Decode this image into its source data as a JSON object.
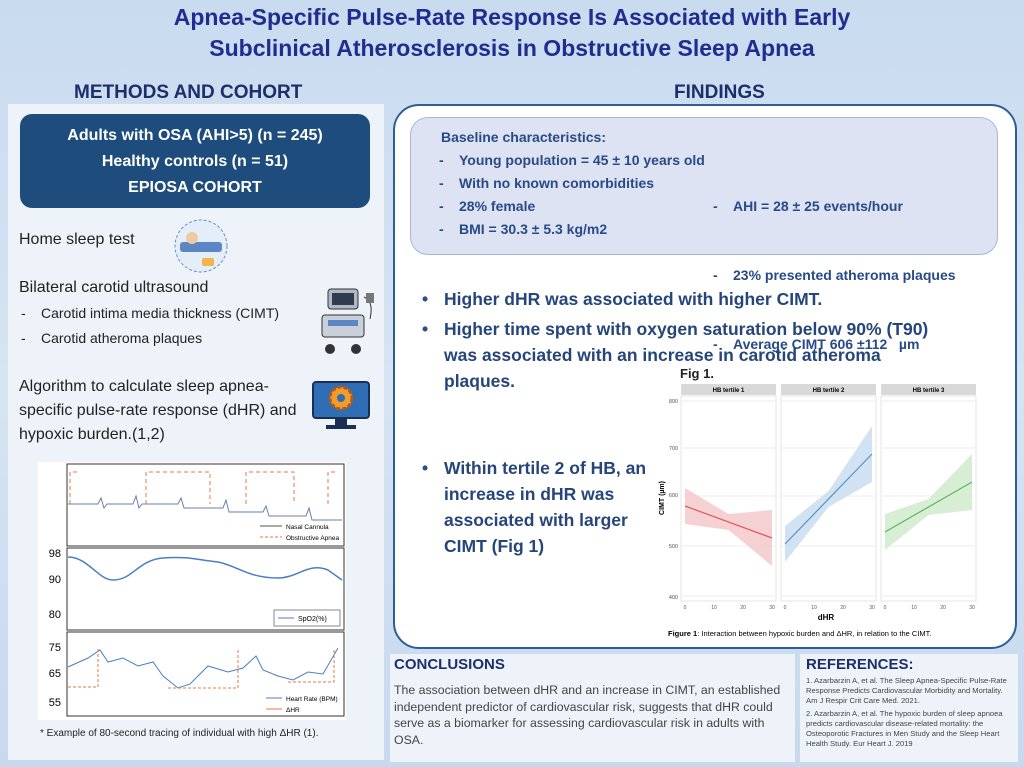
{
  "title": "Apnea-Specific Pulse-Rate Response Is Associated with Early Subclinical Atherosclerosis in Obstructive Sleep Apnea",
  "methods": {
    "heading": "METHODS AND COHORT",
    "cohort": [
      "Adults with OSA (AHI>5) (n = 245)",
      "Healthy controls (n = 51)",
      "EPIOSA COHORT"
    ],
    "home_test": "Home sleep test",
    "ultrasound": {
      "title": "Bilateral carotid ultrasound",
      "bullets": [
        "Carotid intima media thickness (CIMT)",
        "Carotid atheroma plaques"
      ]
    },
    "algorithm": "Algorithm to calculate sleep apnea-specific pulse-rate response (dHR) and hypoxic burden.(1,2)",
    "tracing": {
      "airflow_legend": [
        "Nasal Cannula",
        "Obstructive Apnea"
      ],
      "spo2_ticks": [
        "98",
        "90",
        "80"
      ],
      "spo2_legend": "SpO2(%)",
      "hr_ticks": [
        "75",
        "65",
        "55"
      ],
      "hr_legend": [
        "Heart Rate (BPM)",
        "ΔHR"
      ],
      "caption": "* Example of 80-second tracing of individual with high ΔHR (1)."
    }
  },
  "findings": {
    "heading": "FINDINGS",
    "baseline": {
      "title": "Baseline characteristics:",
      "left": [
        "Young population = 45 ± 10 years old",
        "With no known comorbidities",
        "28% female",
        "BMI = 30.3 ± 5.3 kg/m2"
      ],
      "right": [
        "AHI = 28 ± 25 events/hour",
        "23% presented atheroma plaques",
        "Average CIMT 606 ±112   µm"
      ]
    },
    "bullets": [
      "Higher dHR was associated with higher CIMT.",
      "Higher time spent with oxygen saturation below 90% (T90) was associated with an increase in carotid atheroma plaques.",
      "Within tertile 2 of HB, an increase in dHR was associated with larger CIMT (Fig 1)"
    ],
    "figure": {
      "title": "Fig 1.",
      "panels": [
        "HB tertile 1",
        "HB tertile 2",
        "HB tertile 3"
      ],
      "y_label": "CIMT (µm)",
      "x_label": "dHR",
      "y_ticks": [
        "800",
        "700",
        "600",
        "500",
        "400"
      ],
      "x_ticks": [
        "0",
        "10",
        "20",
        "30"
      ],
      "caption_label": "Figure 1",
      "caption": ": Interaction between hypoxic burden and ΔHR, in relation to the CIMT."
    }
  },
  "conclusions": {
    "heading": "CONCLUSIONS",
    "text": "The association between dHR and an increase in CIMT, an established independent predictor of cardiovascular risk, suggests that dHR could serve as a biomarker for assessing cardiovascular risk in adults with OSA."
  },
  "references": {
    "heading": "REFERENCES:",
    "items": [
      "1.  Azarbarzin A, et al. The Sleep Apnea-Specific Pulse-Rate Response Predicts Cardiovascular Morbidity and Mortality. Am J Respir Crit Care Med. 2021.",
      "2.  Azarbarzin A, et al. The hypoxic burden of sleep apnoea predicts cardiovascular disease-related mortality: the Osteoporotic Fractures in Men Study and the Sleep Heart Health Study. Eur Heart J. 2019"
    ]
  }
}
